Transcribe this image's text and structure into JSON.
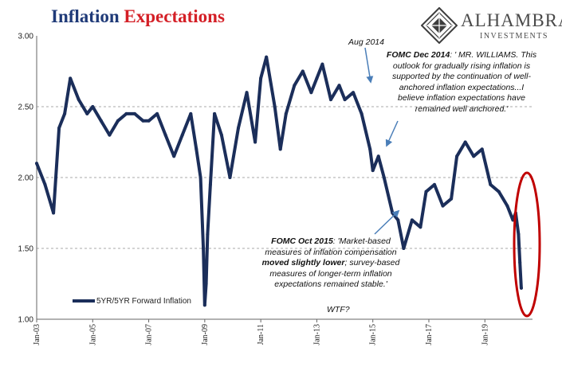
{
  "title": {
    "part1": "Inflation",
    "part2": "Expectations"
  },
  "logo": {
    "name": "ALHAMBRA",
    "sub": "INVESTMENTS"
  },
  "annotations": {
    "aug2014": "Aug 2014",
    "fomc2014": {
      "label": "FOMC Dec 2014",
      "lines": [
        ": ' MR. WILLIAMS. This",
        "outlook for gradually rising inflation is",
        "supported by the continuation of well-",
        "anchored inflation expectations...I",
        "believe inflation expectations have",
        "remained well anchored.'"
      ]
    },
    "fomc2015": {
      "label": "FOMC Oct 2015",
      "line1_rest": ": 'Market-based",
      "line2": "measures of inflation compensation",
      "line3_bold": "moved slightly lower",
      "line3_rest": "; survey-based",
      "line4": "measures of longer-term inflation",
      "line5": "expectations remained stable.'"
    },
    "wtf": "WTF?"
  },
  "legend": {
    "label": "5YR/5YR Forward Inflation"
  },
  "colors": {
    "series": "#1b2e5a",
    "highlight": "#c00000",
    "arrow": "#4a7eb8",
    "grid": "#a8a8a8"
  },
  "chart_data": {
    "type": "line",
    "series": [
      {
        "name": "5YR/5YR Forward Inflation",
        "x": [
          2003.0,
          2003.3,
          2003.6,
          2003.8,
          2004.0,
          2004.2,
          2004.5,
          2004.8,
          2005.0,
          2005.3,
          2005.6,
          2005.9,
          2006.2,
          2006.5,
          2006.8,
          2007.0,
          2007.3,
          2007.6,
          2007.9,
          2008.2,
          2008.5,
          2008.7,
          2008.85,
          2008.95,
          2009.0,
          2009.05,
          2009.1,
          2009.2,
          2009.35,
          2009.6,
          2009.9,
          2010.2,
          2010.5,
          2010.8,
          2011.0,
          2011.2,
          2011.5,
          2011.7,
          2011.9,
          2012.2,
          2012.5,
          2012.8,
          2013.0,
          2013.2,
          2013.5,
          2013.8,
          2014.0,
          2014.3,
          2014.6,
          2014.9,
          2015.0,
          2015.2,
          2015.4,
          2015.7,
          2015.9,
          2016.1,
          2016.4,
          2016.7,
          2016.9,
          2017.2,
          2017.5,
          2017.8,
          2018.0,
          2018.3,
          2018.6,
          2018.9,
          2019.2,
          2019.5,
          2019.8,
          2020.0,
          2020.1,
          2020.2,
          2020.25,
          2020.3
        ],
        "values": [
          2.1,
          1.95,
          1.75,
          2.35,
          2.45,
          2.7,
          2.55,
          2.45,
          2.5,
          2.4,
          2.3,
          2.4,
          2.45,
          2.45,
          2.4,
          2.4,
          2.45,
          2.3,
          2.15,
          2.3,
          2.45,
          2.2,
          2.0,
          1.5,
          1.1,
          1.25,
          1.6,
          1.95,
          2.45,
          2.3,
          2.0,
          2.35,
          2.6,
          2.25,
          2.7,
          2.85,
          2.5,
          2.2,
          2.45,
          2.65,
          2.75,
          2.6,
          2.7,
          2.8,
          2.55,
          2.65,
          2.55,
          2.6,
          2.45,
          2.2,
          2.05,
          2.15,
          2.0,
          1.75,
          1.7,
          1.5,
          1.7,
          1.65,
          1.9,
          1.95,
          1.8,
          1.85,
          2.15,
          2.25,
          2.15,
          2.2,
          1.95,
          1.9,
          1.8,
          1.7,
          1.75,
          1.6,
          1.4,
          1.22
        ]
      }
    ],
    "xticks": [
      "Jan-03",
      "Jan-05",
      "Jan-07",
      "Jan-09",
      "Jan-11",
      "Jan-13",
      "Jan-15",
      "Jan-17",
      "Jan-19"
    ],
    "xtick_values": [
      2003,
      2005,
      2007,
      2009,
      2011,
      2013,
      2015,
      2017,
      2019
    ],
    "yticks": [
      "1.00",
      "1.50",
      "2.00",
      "2.50",
      "3.00"
    ],
    "ylim": [
      1.0,
      3.0
    ],
    "xlim": [
      2003.0,
      2020.7
    ],
    "grid": "horizontal dashed",
    "legend_position": "bottom-left"
  }
}
